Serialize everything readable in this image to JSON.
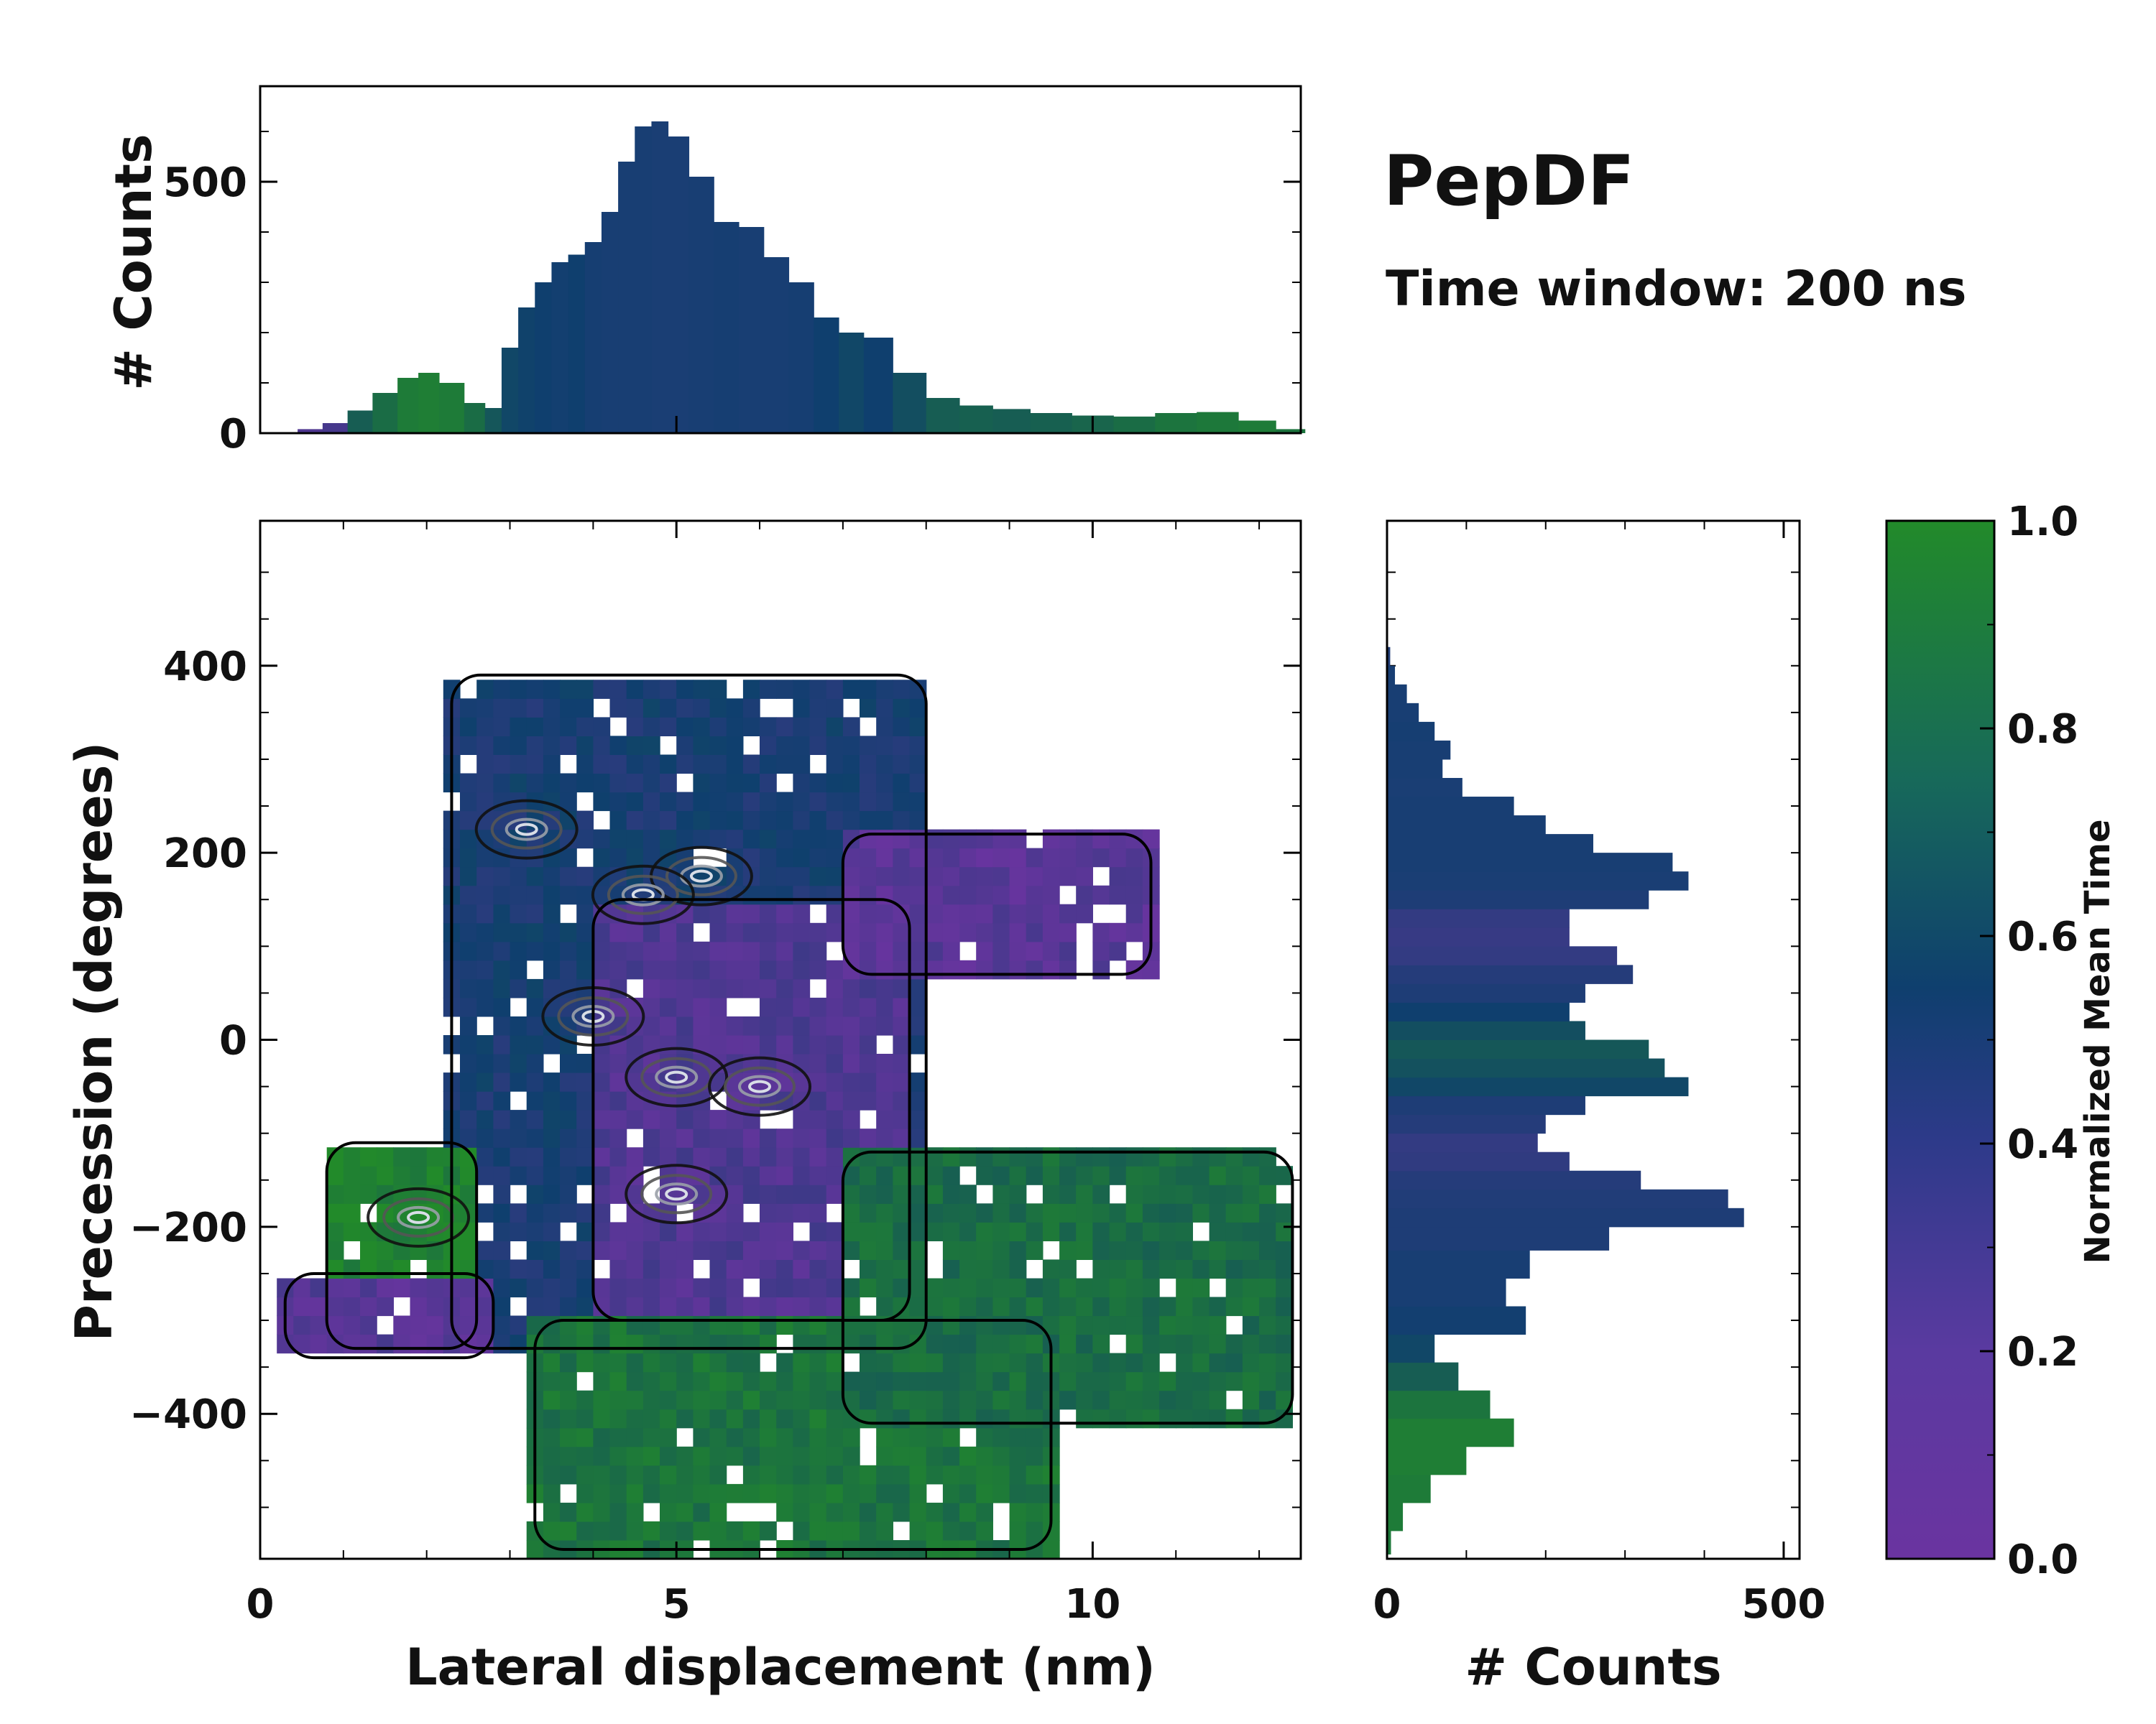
{
  "title": "PepDF",
  "subtitle": "Time window: 200 ns",
  "colors": {
    "low": "#6a34a0",
    "mid": "#0f3f6e",
    "high": "#228a2a",
    "contour_dark": "#111111",
    "contour_light": "#d8dde6",
    "frame": "#000000"
  },
  "chart_data": [
    {
      "type": "heatmap",
      "name": "joint-distribution",
      "xlabel": "Lateral displacement (nm)",
      "ylabel": "Precession (degrees)",
      "xlim": [
        0,
        12.5
      ],
      "ylim": [
        -555,
        555
      ],
      "x_ticks": [
        0,
        5,
        10
      ],
      "y_ticks": [
        -400,
        -200,
        0,
        200,
        400
      ],
      "colorbar": {
        "label": "Normalized Mean Time",
        "range": [
          0.0,
          1.0
        ],
        "ticks": [
          "0.0",
          "0.2",
          "0.4",
          "0.6",
          "0.8",
          "1.0"
        ]
      },
      "regions": [
        {
          "name": "main-blue-lobe",
          "x_range": [
            2.3,
            8.0
          ],
          "y_range": [
            -330,
            390
          ],
          "mean_time": 0.45
        },
        {
          "name": "purple-core",
          "x_range": [
            4.0,
            7.8
          ],
          "y_range": [
            -300,
            150
          ],
          "mean_time": 0.15
        },
        {
          "name": "left-green-lobe",
          "x_range": [
            0.8,
            2.6
          ],
          "y_range": [
            -330,
            -110
          ],
          "mean_time": 0.95
        },
        {
          "name": "left-purple-tail",
          "x_range": [
            0.3,
            2.8
          ],
          "y_range": [
            -340,
            -250
          ],
          "mean_time": 0.12
        },
        {
          "name": "upper-right-purple-arm",
          "x_range": [
            7.0,
            10.7
          ],
          "y_range": [
            70,
            220
          ],
          "mean_time": 0.1
        },
        {
          "name": "bottom-green-basin",
          "x_range": [
            3.3,
            9.5
          ],
          "y_range": [
            -545,
            -300
          ],
          "mean_time": 0.85
        },
        {
          "name": "right-green-arm",
          "x_range": [
            7.0,
            12.4
          ],
          "y_range": [
            -410,
            -120
          ],
          "mean_time": 0.8
        }
      ],
      "density_peaks": [
        {
          "x": 5.3,
          "y": 175
        },
        {
          "x": 4.6,
          "y": 155
        },
        {
          "x": 3.2,
          "y": 225
        },
        {
          "x": 4.0,
          "y": 25
        },
        {
          "x": 5.0,
          "y": -40
        },
        {
          "x": 6.0,
          "y": -50
        },
        {
          "x": 5.0,
          "y": -165
        },
        {
          "x": 1.9,
          "y": -190
        }
      ]
    },
    {
      "type": "bar",
      "name": "x-marginal-histogram",
      "xlabel": "",
      "ylabel": "# Counts",
      "xlim": [
        0,
        12.5
      ],
      "ylim": [
        0,
        690
      ],
      "y_ticks": [
        0,
        500
      ],
      "x": [
        0.3,
        0.6,
        0.9,
        1.2,
        1.5,
        1.8,
        2.0,
        2.3,
        2.6,
        2.8,
        3.0,
        3.2,
        3.4,
        3.6,
        3.8,
        4.0,
        4.2,
        4.4,
        4.6,
        4.8,
        5.0,
        5.3,
        5.6,
        5.9,
        6.2,
        6.5,
        6.8,
        7.1,
        7.4,
        7.8,
        8.2,
        8.6,
        9.0,
        9.5,
        10.0,
        10.5,
        11.0,
        11.5,
        12.0,
        12.4
      ],
      "values": [
        2,
        8,
        20,
        45,
        80,
        110,
        120,
        100,
        60,
        50,
        170,
        250,
        300,
        340,
        355,
        380,
        440,
        540,
        610,
        620,
        590,
        510,
        420,
        410,
        350,
        300,
        230,
        200,
        190,
        120,
        70,
        55,
        48,
        40,
        35,
        33,
        40,
        42,
        25,
        8
      ],
      "mean_time": [
        0.1,
        0.15,
        0.2,
        0.7,
        0.8,
        0.9,
        0.92,
        0.9,
        0.8,
        0.65,
        0.55,
        0.52,
        0.5,
        0.48,
        0.5,
        0.46,
        0.45,
        0.45,
        0.45,
        0.44,
        0.44,
        0.45,
        0.46,
        0.45,
        0.45,
        0.46,
        0.5,
        0.55,
        0.5,
        0.6,
        0.7,
        0.72,
        0.7,
        0.72,
        0.75,
        0.8,
        0.85,
        0.88,
        0.9,
        0.85
      ]
    },
    {
      "type": "bar",
      "orientation": "horizontal",
      "name": "y-marginal-histogram",
      "xlabel": "# Counts",
      "ylabel": "",
      "xlim": [
        0,
        520
      ],
      "ylim": [
        -555,
        555
      ],
      "x_ticks": [
        0,
        500
      ],
      "y": [
        -540,
        -510,
        -480,
        -450,
        -420,
        -390,
        -360,
        -330,
        -300,
        -270,
        -240,
        -210,
        -190,
        -170,
        -150,
        -130,
        -110,
        -90,
        -70,
        -50,
        -30,
        -10,
        10,
        30,
        50,
        70,
        90,
        110,
        130,
        150,
        170,
        190,
        210,
        230,
        250,
        270,
        290,
        310,
        330,
        350,
        370,
        390,
        410
      ],
      "values": [
        5,
        20,
        55,
        100,
        160,
        130,
        90,
        60,
        175,
        150,
        180,
        280,
        450,
        430,
        320,
        230,
        190,
        200,
        250,
        380,
        350,
        330,
        250,
        230,
        250,
        310,
        290,
        230,
        230,
        330,
        380,
        360,
        260,
        200,
        160,
        95,
        70,
        80,
        60,
        40,
        25,
        10,
        4
      ],
      "mean_time": [
        0.88,
        0.9,
        0.9,
        0.92,
        0.92,
        0.85,
        0.7,
        0.55,
        0.48,
        0.45,
        0.45,
        0.42,
        0.42,
        0.4,
        0.38,
        0.32,
        0.3,
        0.38,
        0.42,
        0.55,
        0.62,
        0.66,
        0.6,
        0.5,
        0.42,
        0.38,
        0.3,
        0.28,
        0.3,
        0.42,
        0.44,
        0.45,
        0.45,
        0.45,
        0.45,
        0.44,
        0.45,
        0.45,
        0.46,
        0.45,
        0.45,
        0.45,
        0.4
      ]
    }
  ]
}
